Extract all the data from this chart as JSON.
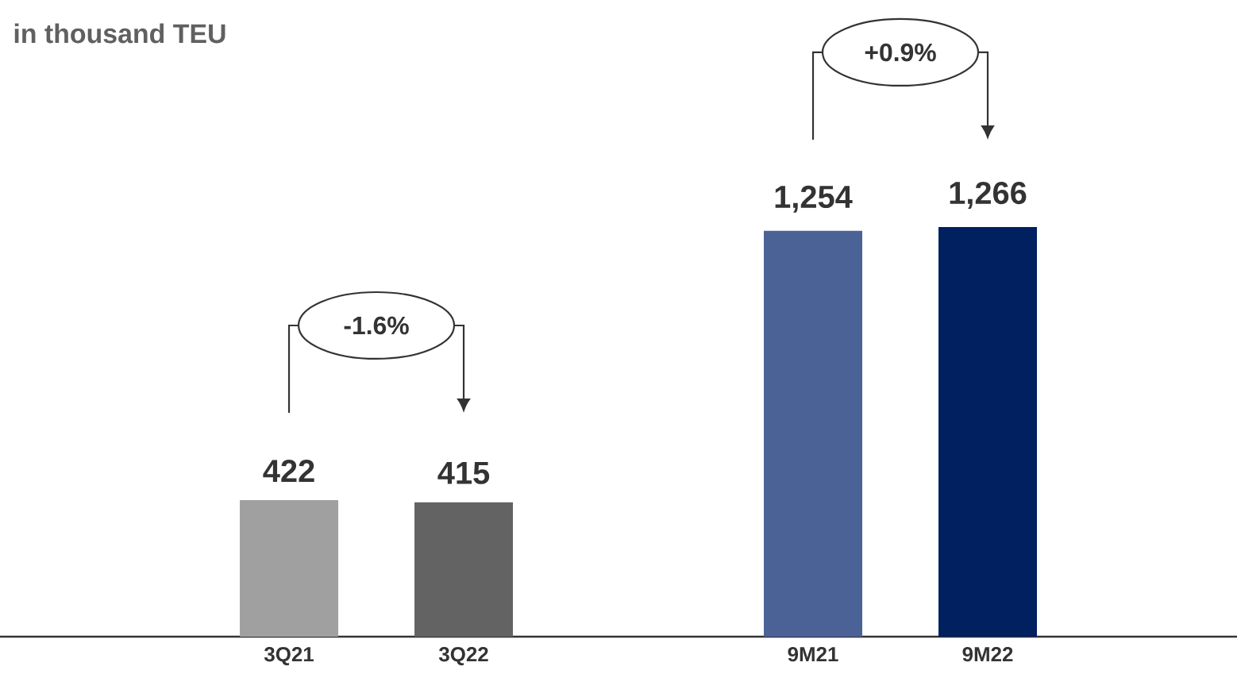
{
  "chart_data": {
    "type": "bar",
    "subtitle": "in thousand TEU",
    "categories": [
      "3Q21",
      "3Q22",
      null,
      "9M21",
      "9M22"
    ],
    "values": [
      422,
      415,
      null,
      1254,
      1266
    ],
    "colors": [
      "#a0a0a0",
      "#636363",
      null,
      "#4b6296",
      "#002060"
    ],
    "value_labels": [
      "422",
      "415",
      null,
      "1,254",
      "1,266"
    ],
    "annotations": [
      "-1.6%",
      "+0.9%"
    ]
  }
}
